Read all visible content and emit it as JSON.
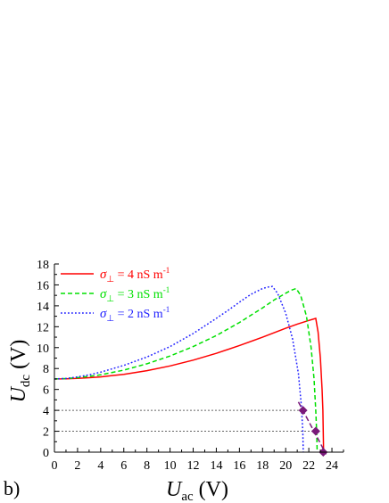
{
  "panel_label": "b)",
  "chart_data": {
    "type": "line",
    "xlabel": {
      "main": "U",
      "sub": "ac",
      "unit": "(V)"
    },
    "ylabel": {
      "main": "U",
      "sub": "dc",
      "unit": "(V)"
    },
    "xlim": [
      0,
      25
    ],
    "ylim": [
      0,
      18
    ],
    "xticks": [
      0,
      2,
      4,
      6,
      8,
      10,
      12,
      14,
      16,
      18,
      20,
      22,
      24
    ],
    "yticks": [
      0,
      2,
      4,
      6,
      8,
      10,
      12,
      14,
      16,
      18
    ],
    "grid": false,
    "legend_position": "top-left",
    "series": [
      {
        "name": "σ⊥ = 4 nS m⁻¹",
        "legend": {
          "sigma": "σ",
          "perp": "⊥",
          "text": " = 4 nS m",
          "sup": "-1"
        },
        "color": "#ff0000",
        "dash": "solid",
        "x": [
          0,
          1,
          2,
          3,
          4,
          6,
          8,
          10,
          12,
          14,
          16,
          18,
          20,
          21,
          22,
          22.6,
          22.8,
          23.0,
          23.15,
          23.22,
          23.25,
          23.27,
          23.28
        ],
        "y": [
          7.0,
          7.02,
          7.06,
          7.12,
          7.2,
          7.45,
          7.8,
          8.25,
          8.8,
          9.45,
          10.2,
          11.0,
          11.85,
          12.25,
          12.6,
          12.8,
          11.5,
          9.0,
          6.0,
          4.0,
          2.0,
          0.5,
          0
        ]
      },
      {
        "name": "σ⊥ = 3 nS m⁻¹",
        "legend": {
          "sigma": "σ",
          "perp": "⊥",
          "text": " = 3 nS m",
          "sup": "-1"
        },
        "color": "#00e000",
        "dash": "5,3",
        "x": [
          0,
          1,
          2,
          3,
          4,
          6,
          8,
          10,
          12,
          14,
          16,
          18,
          19,
          20,
          20.5,
          20.9,
          21.3,
          21.8,
          22.2,
          22.45,
          22.6,
          22.68,
          22.72
        ],
        "y": [
          7.0,
          7.04,
          7.12,
          7.25,
          7.4,
          7.85,
          8.45,
          9.2,
          10.1,
          11.15,
          12.4,
          13.8,
          14.55,
          15.2,
          15.5,
          15.65,
          15.0,
          13.0,
          10.0,
          7.0,
          4.0,
          2.0,
          0
        ]
      },
      {
        "name": "σ⊥ = 2 nS m⁻¹",
        "legend": {
          "sigma": "σ",
          "perp": "⊥",
          "text": " = 2 nS m",
          "sup": "-1"
        },
        "color": "#1f1fff",
        "dash": "1.8,2.2",
        "x": [
          0,
          1,
          2,
          3,
          4,
          6,
          8,
          10,
          12,
          14,
          15,
          16,
          17,
          18,
          18.5,
          18.85,
          19.3,
          20.0,
          20.6,
          21.1,
          21.35,
          21.48,
          21.52
        ],
        "y": [
          7.0,
          7.05,
          7.2,
          7.4,
          7.65,
          8.3,
          9.1,
          10.1,
          11.35,
          12.8,
          13.55,
          14.35,
          15.1,
          15.65,
          15.8,
          15.85,
          15.2,
          13.3,
          10.8,
          7.5,
          4.5,
          2.0,
          0
        ]
      }
    ],
    "reference_lines": [
      {
        "y": 4,
        "x_to": 21.5,
        "color": "#666666",
        "dash": "2,2"
      },
      {
        "y": 2,
        "x_to": 22.6,
        "color": "#666666",
        "dash": "2,2"
      }
    ],
    "markers": [
      {
        "x": 21.5,
        "y": 4,
        "color": "#7a1a7a"
      },
      {
        "x": 22.6,
        "y": 2,
        "color": "#7a1a7a"
      },
      {
        "x": 23.25,
        "y": 0,
        "color": "#7a1a7a"
      }
    ],
    "marker_line": {
      "x1": 21.1,
      "y1": 4.8,
      "x2": 23.5,
      "y2": -0.2,
      "color": "#7a1a7a",
      "dash": "6,3"
    }
  }
}
